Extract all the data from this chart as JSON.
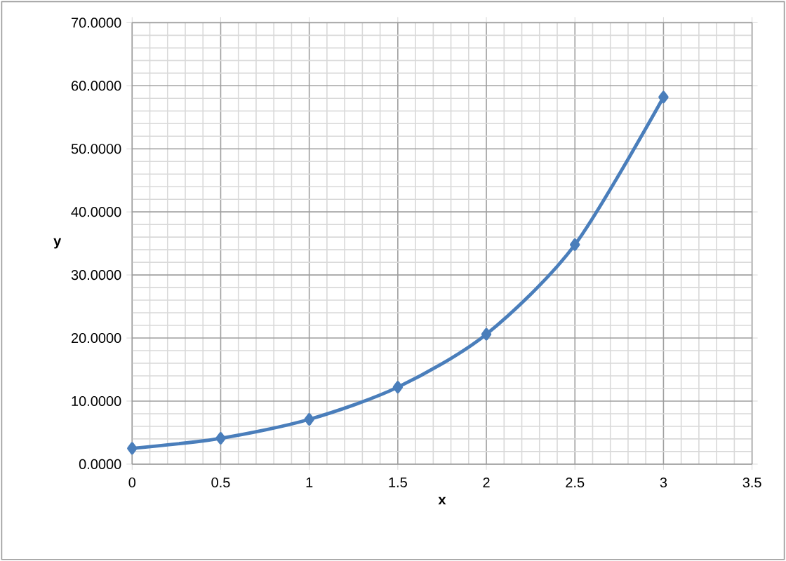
{
  "chart_data": {
    "type": "line",
    "xlabel": "x",
    "ylabel": "y",
    "x": [
      0,
      0.5,
      1,
      1.5,
      2,
      2.5,
      3
    ],
    "series": [
      {
        "color": "#4a7ebb",
        "values": [
          2.5,
          4.1,
          7.1,
          12.2,
          20.6,
          34.8,
          58.2
        ]
      }
    ],
    "xlim": [
      0,
      3.5
    ],
    "xticks": [
      0,
      0.5,
      1,
      1.5,
      2,
      2.5,
      3,
      3.5
    ],
    "ylim": [
      0,
      70
    ],
    "yticks": [
      {
        "value": 0,
        "label": "0.0000"
      },
      {
        "value": 10,
        "label": "10.0000"
      },
      {
        "value": 20,
        "label": "20.0000"
      },
      {
        "value": 30,
        "label": "30.0000"
      },
      {
        "value": 40,
        "label": "40.0000"
      },
      {
        "value": 50,
        "label": "50.0000"
      },
      {
        "value": 60,
        "label": "60.0000"
      },
      {
        "value": 70,
        "label": "70.0000"
      }
    ],
    "grid": true,
    "legend": false,
    "marker": "diamond",
    "line_style": "solid"
  }
}
